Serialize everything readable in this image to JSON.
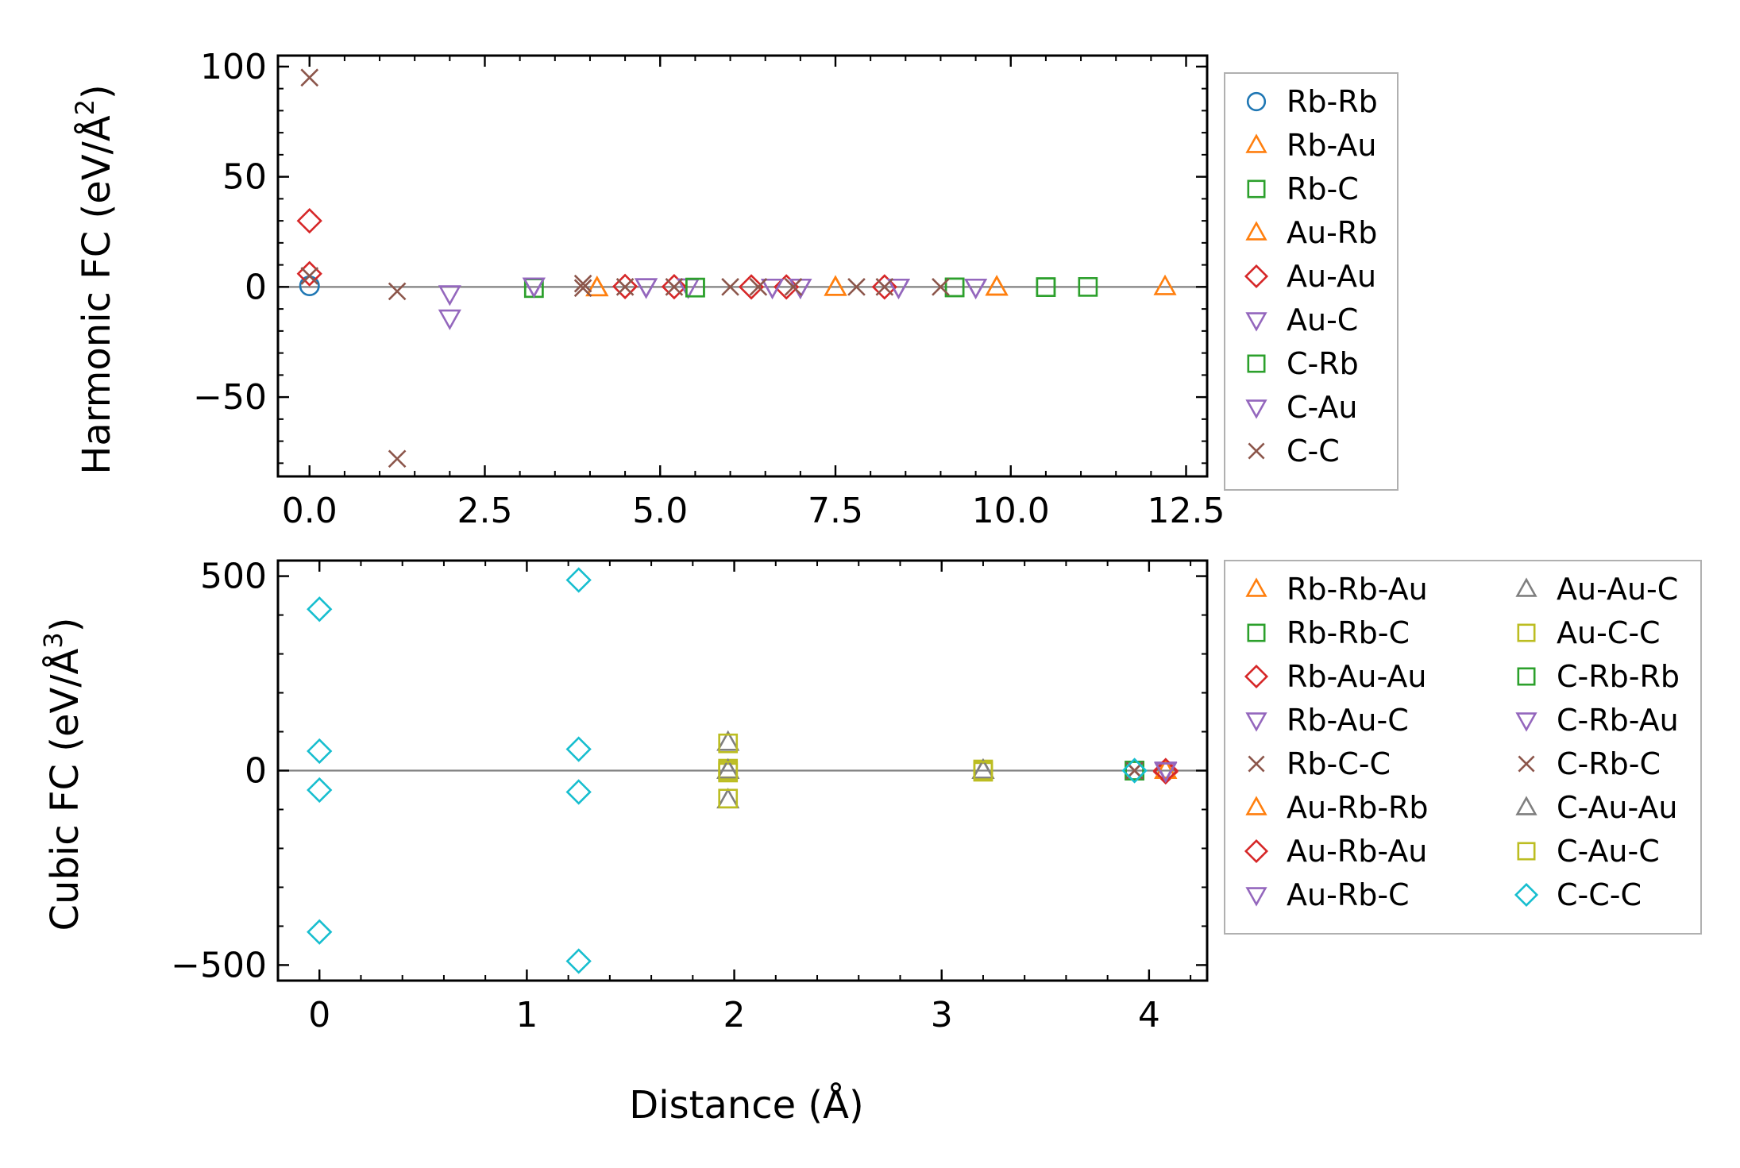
{
  "chart_data": [
    {
      "type": "scatter",
      "title": "",
      "xlabel": "",
      "ylabel": "Harmonic FC (eV/Å²)",
      "ylabel_parts": {
        "main": "Harmonic FC (eV/Å",
        "sup": "2",
        "close": ")"
      },
      "xlim": [
        -0.45,
        12.8
      ],
      "ylim": [
        -86,
        105
      ],
      "xticks": [
        0,
        2.5,
        5,
        7.5,
        10,
        12.5
      ],
      "xtick_labels": [
        "0.0",
        "2.5",
        "5.0",
        "7.5",
        "10.0",
        "12.5"
      ],
      "yticks": [
        100,
        50,
        0,
        -50
      ],
      "ytick_labels": [
        "100",
        "50",
        "0",
        "−50"
      ],
      "zero_line": true,
      "legend_position": "outside-right",
      "legend_columns": 1,
      "series": [
        {
          "name": "Rb-Rb",
          "marker": "circle",
          "color": "#1f77b4",
          "x": [
            0.0
          ],
          "y": [
            0.5
          ]
        },
        {
          "name": "Rb-Au",
          "marker": "triangle-up",
          "color": "#ff7f0e",
          "x": [
            4.1,
            7.5,
            9.8,
            12.2
          ],
          "y": [
            -0.5,
            -0.3,
            -0.2,
            0.0
          ]
        },
        {
          "name": "Rb-C",
          "marker": "square",
          "color": "#2ca02c",
          "x": [
            3.2,
            5.5,
            9.2,
            10.5,
            11.1
          ],
          "y": [
            -0.5,
            -0.3,
            -0.2,
            -0.1,
            0.0
          ]
        },
        {
          "name": "Au-Rb",
          "marker": "triangle-up",
          "color": "#ff7f0e",
          "x": [
            4.1,
            7.5,
            9.8
          ],
          "y": [
            -0.5,
            -0.3,
            -0.2
          ]
        },
        {
          "name": "Au-Au",
          "marker": "diamond",
          "color": "#d62728",
          "x": [
            0.0,
            0.0,
            4.5,
            5.2,
            6.3,
            6.8,
            8.2
          ],
          "y": [
            30,
            6,
            0.2,
            0.1,
            0.0,
            0.0,
            0.0
          ]
        },
        {
          "name": "Au-C",
          "marker": "triangle-down",
          "color": "#9467bd",
          "x": [
            2.0,
            2.0,
            3.2,
            4.8,
            5.4,
            6.6,
            7.0,
            8.4,
            9.5
          ],
          "y": [
            -14,
            -3,
            0.5,
            0.2,
            0.1,
            0.0,
            0.0,
            0.0,
            0.0
          ]
        },
        {
          "name": "C-Rb",
          "marker": "square",
          "color": "#2ca02c",
          "x": [
            3.2,
            5.5,
            9.2,
            10.5
          ],
          "y": [
            -0.5,
            -0.3,
            -0.2,
            -0.1
          ]
        },
        {
          "name": "C-Au",
          "marker": "triangle-down",
          "color": "#9467bd",
          "x": [
            3.2,
            4.8,
            6.6,
            7.0,
            8.4,
            9.5
          ],
          "y": [
            0.5,
            0.2,
            0.0,
            0.0,
            0.0,
            0.0
          ]
        },
        {
          "name": "C-C",
          "marker": "x",
          "color": "#8c564b",
          "x": [
            0.0,
            0.0,
            1.25,
            1.25,
            3.9,
            3.9,
            4.5,
            5.2,
            6.0,
            6.4,
            6.9,
            7.8,
            8.2,
            9.0
          ],
          "y": [
            95,
            5,
            -2,
            -78,
            1.5,
            -0.5,
            0.0,
            0.0,
            0.0,
            0.0,
            0.0,
            0.0,
            0.0,
            0.0
          ]
        }
      ]
    },
    {
      "type": "scatter",
      "title": "",
      "xlabel": "Distance (Å)",
      "ylabel": "Cubic FC (eV/Å³)",
      "ylabel_parts": {
        "main": "Cubic FC (eV/Å",
        "sup": "3",
        "close": ")"
      },
      "xlim": [
        -0.2,
        4.28
      ],
      "ylim": [
        -540,
        540
      ],
      "xticks": [
        0,
        1,
        2,
        3,
        4
      ],
      "xtick_labels": [
        "0",
        "1",
        "2",
        "3",
        "4"
      ],
      "yticks": [
        500,
        0,
        -500
      ],
      "ytick_labels": [
        "500",
        "0",
        "−500"
      ],
      "zero_line": true,
      "legend_position": "outside-right",
      "legend_columns": 2,
      "series": [
        {
          "name": "Rb-Rb-Au",
          "marker": "triangle-up",
          "color": "#ff7f0e",
          "x": [
            4.08
          ],
          "y": [
            0
          ]
        },
        {
          "name": "Rb-Rb-C",
          "marker": "square",
          "color": "#2ca02c",
          "x": [
            3.93
          ],
          "y": [
            0
          ]
        },
        {
          "name": "Rb-Au-Au",
          "marker": "diamond",
          "color": "#d62728",
          "x": [
            4.08
          ],
          "y": [
            -3
          ]
        },
        {
          "name": "Rb-Au-C",
          "marker": "triangle-down",
          "color": "#9467bd",
          "x": [
            4.08
          ],
          "y": [
            2
          ]
        },
        {
          "name": "Rb-C-C",
          "marker": "x",
          "color": "#8c564b",
          "x": [
            3.93
          ],
          "y": [
            0
          ]
        },
        {
          "name": "Au-Rb-Rb",
          "marker": "triangle-up",
          "color": "#ff7f0e",
          "x": [
            4.08
          ],
          "y": [
            0
          ]
        },
        {
          "name": "Au-Rb-Au",
          "marker": "diamond",
          "color": "#d62728",
          "x": [
            4.08
          ],
          "y": [
            0
          ]
        },
        {
          "name": "Au-Rb-C",
          "marker": "triangle-down",
          "color": "#9467bd",
          "x": [
            4.08
          ],
          "y": [
            0
          ]
        },
        {
          "name": "Au-Au-C",
          "marker": "triangle-up",
          "color": "#7f7f7f",
          "x": [
            1.97,
            1.97,
            1.97,
            3.2
          ],
          "y": [
            72,
            0,
            -76,
            0
          ]
        },
        {
          "name": "Au-C-C",
          "marker": "square",
          "color": "#bcbd22",
          "x": [
            1.97,
            1.97,
            1.97,
            1.97,
            3.2,
            3.2
          ],
          "y": [
            70,
            5,
            -5,
            -72,
            3,
            -3
          ]
        },
        {
          "name": "C-Rb-Rb",
          "marker": "square",
          "color": "#2ca02c",
          "x": [
            3.93
          ],
          "y": [
            0
          ]
        },
        {
          "name": "C-Rb-Au",
          "marker": "triangle-down",
          "color": "#9467bd",
          "x": [
            4.08
          ],
          "y": [
            0
          ]
        },
        {
          "name": "C-Rb-C",
          "marker": "x",
          "color": "#8c564b",
          "x": [
            3.93
          ],
          "y": [
            0
          ]
        },
        {
          "name": "C-Au-Au",
          "marker": "triangle-up",
          "color": "#7f7f7f",
          "x": [
            1.97,
            3.2
          ],
          "y": [
            0,
            0
          ]
        },
        {
          "name": "C-Au-C",
          "marker": "square",
          "color": "#bcbd22",
          "x": [
            1.97,
            3.2
          ],
          "y": [
            0,
            0
          ]
        },
        {
          "name": "C-C-C",
          "marker": "diamond",
          "color": "#17becf",
          "x": [
            0,
            0,
            0,
            0,
            1.25,
            1.25,
            1.25,
            1.25,
            3.93
          ],
          "y": [
            415,
            50,
            -50,
            -415,
            490,
            55,
            -55,
            -490,
            0
          ]
        }
      ]
    }
  ]
}
